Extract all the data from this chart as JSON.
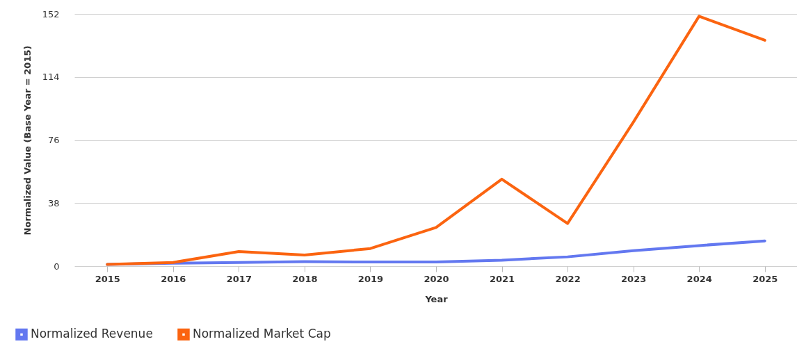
{
  "chart_data": {
    "type": "line",
    "xlabel": "Year",
    "ylabel": "Normalized Value (Base Year = 2015)",
    "categories": [
      "2015",
      "2016",
      "2017",
      "2018",
      "2019",
      "2020",
      "2021",
      "2022",
      "2023",
      "2024",
      "2025"
    ],
    "series": [
      {
        "name": "Normalized Revenue",
        "color": "#6378f0",
        "values": [
          1,
          1.8,
          2.2,
          2.7,
          2.5,
          2.5,
          3.6,
          5.6,
          9.3,
          12.4,
          15.2
        ]
      },
      {
        "name": "Normalized Market Cap",
        "color": "#fb6410",
        "values": [
          1,
          2.2,
          8.8,
          6.7,
          10.6,
          23.3,
          52.4,
          25.7,
          86.7,
          150.6,
          136.1
        ]
      }
    ],
    "ylim": [
      0,
      152
    ],
    "yticks": [
      0,
      38,
      76,
      114,
      152
    ],
    "grid": "y",
    "legend": "bottom left",
    "marker": "none",
    "line_style": "solid"
  }
}
